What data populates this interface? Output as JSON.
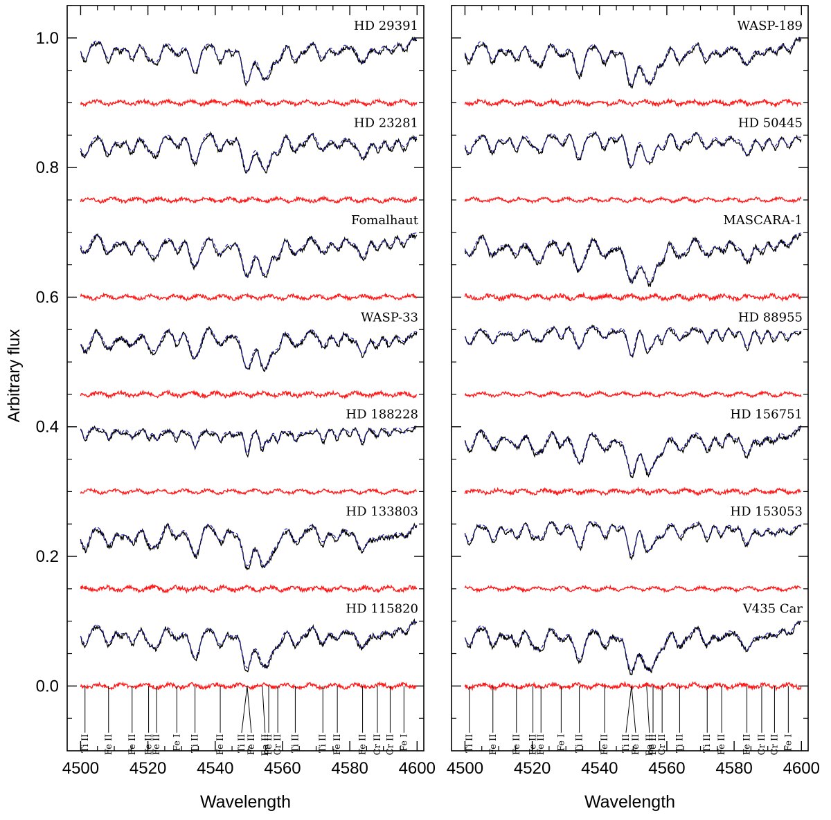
{
  "chart_data": {
    "type": "line",
    "ylabel": "Arbitrary flux",
    "colors": {
      "observed": "#000000",
      "model": "#1f1fb4",
      "residual": "#ff1a1a",
      "marker": "#000000"
    },
    "line_ids": [
      {
        "wl": 4501.3,
        "label": "Ti II"
      },
      {
        "wl": 4508.3,
        "label": "Fe II"
      },
      {
        "wl": 4515.3,
        "label": "Fe II"
      },
      {
        "wl": 4520.2,
        "label": "Fe II"
      },
      {
        "wl": 4522.6,
        "label": "Fe II"
      },
      {
        "wl": 4528.6,
        "label": "Fe I"
      },
      {
        "wl": 4534.0,
        "label": "Ti II"
      },
      {
        "wl": 4541.5,
        "label": "Fe II"
      },
      {
        "wl": 4549.5,
        "label": "Ti II"
      },
      {
        "wl": 4549.5,
        "label": "Fe II"
      },
      {
        "wl": 4554.0,
        "label": "Ba II"
      },
      {
        "wl": 4555.9,
        "label": "Fe II"
      },
      {
        "wl": 4558.6,
        "label": "Cr II"
      },
      {
        "wl": 4563.8,
        "label": "Ti II"
      },
      {
        "wl": 4572.0,
        "label": "Ti II"
      },
      {
        "wl": 4576.3,
        "label": "Fe II"
      },
      {
        "wl": 4583.8,
        "label": "Fe II"
      },
      {
        "wl": 4588.2,
        "label": "Cr II"
      },
      {
        "wl": 4592.0,
        "label": "Cr II"
      },
      {
        "wl": 4596.1,
        "label": "Fe I"
      }
    ],
    "panels": [
      {
        "xlabel": "Wavelength",
        "xlim": [
          4496,
          4602
        ],
        "ylim": [
          -0.1,
          1.05
        ],
        "x_ticks": [
          4500,
          4520,
          4540,
          4560,
          4580,
          4600
        ],
        "y_ticks": [
          {
            "value": 0.0,
            "label": "0.0"
          },
          {
            "value": 0.2,
            "label": "0.2"
          },
          {
            "value": 0.4,
            "label": "0.4"
          },
          {
            "value": 0.6,
            "label": "0.6"
          },
          {
            "value": 0.8,
            "label": "0.8"
          },
          {
            "value": 1.0,
            "label": "1.0"
          }
        ],
        "series": [
          {
            "name": "HD 29391",
            "offset": 1.0,
            "residual_offset": 0.9,
            "broad": 1.0
          },
          {
            "name": "HD 23281",
            "offset": 0.85,
            "residual_offset": 0.75,
            "broad": 1.0
          },
          {
            "name": "Fomalhaut",
            "offset": 0.7,
            "residual_offset": 0.6,
            "broad": 1.0
          },
          {
            "name": "WASP-33",
            "offset": 0.55,
            "residual_offset": 0.45,
            "broad": 1.1
          },
          {
            "name": "HD 188228",
            "offset": 0.4,
            "residual_offset": 0.3,
            "broad": 0.3
          },
          {
            "name": "HD 133803",
            "offset": 0.25,
            "residual_offset": 0.15,
            "broad": 1.2
          },
          {
            "name": "HD 115820",
            "offset": 0.1,
            "residual_offset": 0.0,
            "broad": 1.1
          }
        ]
      },
      {
        "xlabel": "Wavelength",
        "xlim": [
          4496,
          4602
        ],
        "ylim": [
          -0.1,
          1.05
        ],
        "x_ticks": [
          4500,
          4520,
          4540,
          4560,
          4580,
          4600
        ],
        "y_ticks": [
          {
            "value": 0.0,
            "label": ""
          },
          {
            "value": 0.2,
            "label": ""
          },
          {
            "value": 0.4,
            "label": ""
          },
          {
            "value": 0.6,
            "label": ""
          },
          {
            "value": 0.8,
            "label": ""
          },
          {
            "value": 1.0,
            "label": ""
          }
        ],
        "series": [
          {
            "name": "WASP-189",
            "offset": 1.0,
            "residual_offset": 0.9,
            "broad": 1.1
          },
          {
            "name": "HD 50445",
            "offset": 0.85,
            "residual_offset": 0.75,
            "broad": 0.8
          },
          {
            "name": "MASCARA-1",
            "offset": 0.7,
            "residual_offset": 0.6,
            "broad": 1.2
          },
          {
            "name": "HD 88955",
            "offset": 0.55,
            "residual_offset": 0.45,
            "broad": 0.6
          },
          {
            "name": "HD 156751",
            "offset": 0.4,
            "residual_offset": 0.3,
            "broad": 1.1
          },
          {
            "name": "HD 153053",
            "offset": 0.25,
            "residual_offset": 0.15,
            "broad": 0.8
          },
          {
            "name": "V435 Car",
            "offset": 0.1,
            "residual_offset": 0.0,
            "broad": 1.2
          }
        ]
      }
    ]
  }
}
